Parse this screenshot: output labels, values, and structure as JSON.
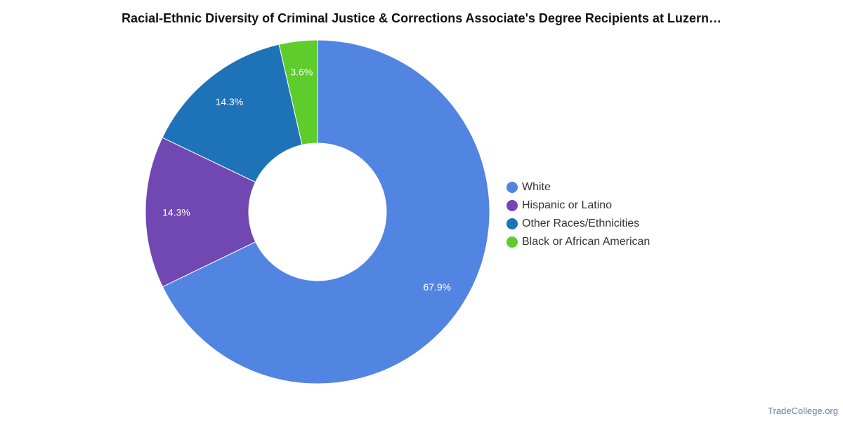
{
  "chart_data": {
    "type": "pie",
    "title": "Racial-Ethnic Diversity of Criminal Justice & Corrections Associate's Degree Recipients at Luzern…",
    "series": [
      {
        "name": "White",
        "value": 67.9,
        "label": "67.9%",
        "color": "#5284e2"
      },
      {
        "name": "Hispanic or Latino",
        "value": 14.3,
        "label": "14.3%",
        "color": "#7147b2"
      },
      {
        "name": "Other Races/Ethnicities",
        "value": 14.3,
        "label": "14.3%",
        "color": "#1e72b8"
      },
      {
        "name": "Black or African American",
        "value": 3.6,
        "label": "3.6%",
        "color": "#5ecc2b"
      }
    ],
    "legend_position": "right"
  },
  "watermark": "TradeCollege.org"
}
